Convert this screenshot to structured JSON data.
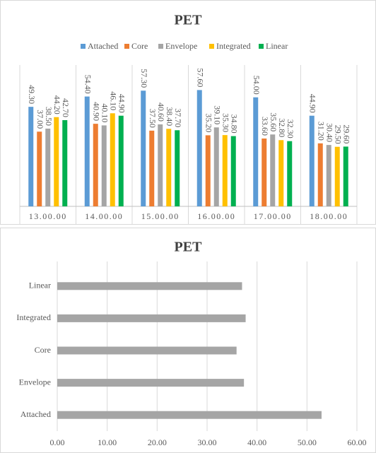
{
  "chart_data": [
    {
      "type": "bar",
      "title": "PET",
      "categories": [
        "13.00.00",
        "14.00.00",
        "15.00.00",
        "16.00.00",
        "17.00.00",
        "18.00.00"
      ],
      "series": [
        {
          "name": "Attached",
          "color": "#5b9bd5",
          "values": [
            49.3,
            54.4,
            57.3,
            57.6,
            54.0,
            44.9
          ],
          "value_labels": [
            "49.30",
            "54.40",
            "57.30",
            "57.60",
            "54.00",
            "44.90"
          ]
        },
        {
          "name": "Core",
          "color": "#ed7d31",
          "values": [
            37.0,
            40.9,
            37.5,
            35.2,
            33.6,
            31.2
          ],
          "value_labels": [
            "37.00",
            "40.90",
            "37.50",
            "35.20",
            "33.60",
            "31.20"
          ]
        },
        {
          "name": "Envelope",
          "color": "#a5a5a5",
          "values": [
            38.5,
            40.1,
            40.6,
            39.1,
            35.6,
            30.4
          ],
          "value_labels": [
            "38.50",
            "40.10",
            "40.60",
            "39.10",
            "35.60",
            "30.40"
          ]
        },
        {
          "name": "Integrated",
          "color": "#ffc000",
          "values": [
            44.2,
            46.1,
            38.4,
            35.3,
            32.8,
            29.5
          ],
          "value_labels": [
            "44.20",
            "46.10",
            "38.40",
            "35.30",
            "32.80",
            "29.50"
          ]
        },
        {
          "name": "Linear",
          "color": "#00b050",
          "values": [
            42.7,
            44.9,
            37.7,
            34.8,
            32.3,
            29.6
          ],
          "value_labels": [
            "42.70",
            "44.90",
            "37.70",
            "34.80",
            "32.30",
            "29.60"
          ]
        }
      ],
      "ylim": [
        0,
        70
      ],
      "legend": "top"
    },
    {
      "type": "hbar",
      "title": "PET",
      "categories": [
        "Attached",
        "Envelope",
        "Core",
        "Integrated",
        "Linear"
      ],
      "values": [
        52.92,
        37.38,
        35.9,
        37.72,
        37.0
      ],
      "color": "#a5a5a5",
      "xlim": [
        0,
        60
      ],
      "xticks": [
        {
          "value": 0,
          "label": "0.00"
        },
        {
          "value": 10,
          "label": "10.00"
        },
        {
          "value": 20,
          "label": "20.00"
        },
        {
          "value": 30,
          "label": "30.00"
        },
        {
          "value": 40,
          "label": "40.00"
        },
        {
          "value": 50,
          "label": "50.00"
        },
        {
          "value": 60,
          "label": "60.00"
        }
      ],
      "grid": true
    }
  ]
}
